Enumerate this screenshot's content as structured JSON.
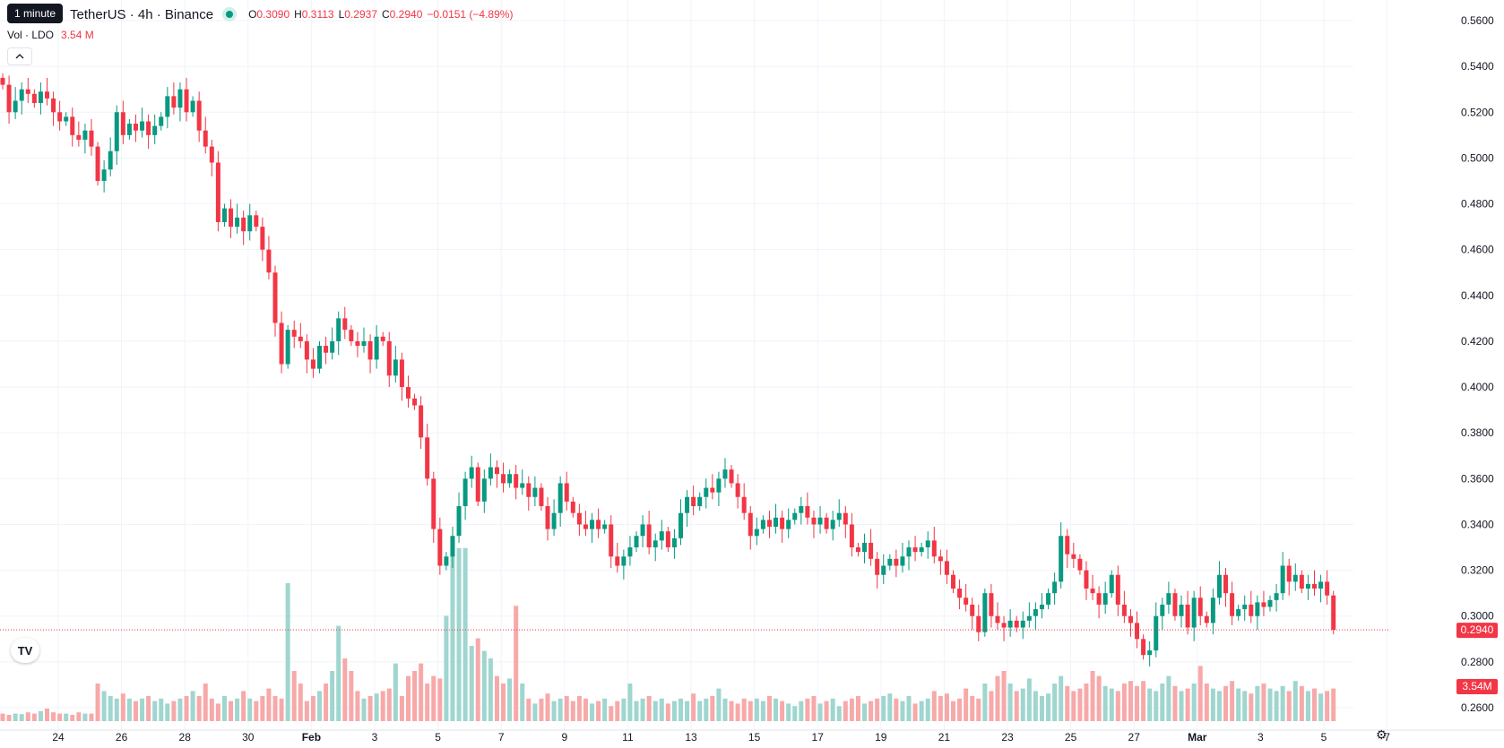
{
  "header": {
    "tooltip": "1 minute",
    "symbol": "TetherUS · 4h · Binance",
    "ohlc": {
      "o_label": "O",
      "o": "0.3090",
      "h_label": "H",
      "h": "0.3113",
      "l_label": "L",
      "l": "0.2937",
      "c_label": "C",
      "c": "0.2940",
      "change": "−0.0151 (−4.89%)"
    },
    "volume_label": "Vol · LDO",
    "volume_value": "3.54 M",
    "collapse_icon": "chevron-up-icon"
  },
  "colors": {
    "up": "#089981",
    "down": "#f23645",
    "up_volume": "#9fd6cf",
    "down_volume": "#f7a9a9"
  },
  "price_axis": {
    "labels": [
      "0.5600",
      "0.5400",
      "0.5200",
      "0.5000",
      "0.4800",
      "0.4600",
      "0.4400",
      "0.4200",
      "0.4000",
      "0.3800",
      "0.3600",
      "0.3400",
      "0.3200",
      "0.3000",
      "0.2800",
      "0.2600"
    ],
    "last_price": "0.2940",
    "last_volume": "3.54M"
  },
  "time_axis": {
    "labels": [
      "24",
      "26",
      "28",
      "30",
      "Feb",
      "3",
      "5",
      "7",
      "9",
      "11",
      "13",
      "15",
      "17",
      "19",
      "21",
      "23",
      "25",
      "27",
      "Mar",
      "3",
      "5",
      "7"
    ]
  },
  "logo": "TV",
  "settings_icon": "gear-icon",
  "chart_data": {
    "type": "candlestick",
    "interval": "4h",
    "grid": true,
    "y_range": [
      0.255,
      0.565
    ],
    "series": [
      {
        "name": "price",
        "values": [
          [
            0.535,
            0.532
          ],
          [
            0.532,
            0.52
          ],
          [
            0.52,
            0.525
          ],
          [
            0.525,
            0.53
          ],
          [
            0.53,
            0.528
          ],
          [
            0.528,
            0.524
          ],
          [
            0.524,
            0.529
          ],
          [
            0.529,
            0.526
          ],
          [
            0.526,
            0.52
          ],
          [
            0.52,
            0.516
          ],
          [
            0.516,
            0.518
          ],
          [
            0.518,
            0.51
          ],
          [
            0.51,
            0.508
          ],
          [
            0.508,
            0.512
          ],
          [
            0.512,
            0.505
          ],
          [
            0.505,
            0.49
          ],
          [
            0.49,
            0.495
          ],
          [
            0.495,
            0.503
          ],
          [
            0.503,
            0.52
          ],
          [
            0.52,
            0.51
          ],
          [
            0.51,
            0.515
          ],
          [
            0.515,
            0.512
          ],
          [
            0.512,
            0.516
          ],
          [
            0.516,
            0.51
          ],
          [
            0.51,
            0.514
          ],
          [
            0.514,
            0.518
          ],
          [
            0.518,
            0.527
          ],
          [
            0.527,
            0.522
          ],
          [
            0.522,
            0.53
          ],
          [
            0.53,
            0.52
          ],
          [
            0.52,
            0.525
          ],
          [
            0.525,
            0.512
          ],
          [
            0.512,
            0.505
          ],
          [
            0.505,
            0.498
          ],
          [
            0.498,
            0.472
          ],
          [
            0.472,
            0.478
          ],
          [
            0.478,
            0.47
          ],
          [
            0.47,
            0.474
          ],
          [
            0.474,
            0.468
          ],
          [
            0.468,
            0.475
          ],
          [
            0.475,
            0.47
          ],
          [
            0.47,
            0.46
          ],
          [
            0.46,
            0.45
          ],
          [
            0.45,
            0.428
          ],
          [
            0.428,
            0.41
          ],
          [
            0.41,
            0.425
          ],
          [
            0.425,
            0.422
          ],
          [
            0.422,
            0.42
          ],
          [
            0.42,
            0.412
          ],
          [
            0.412,
            0.408
          ],
          [
            0.408,
            0.418
          ],
          [
            0.418,
            0.415
          ],
          [
            0.415,
            0.42
          ],
          [
            0.42,
            0.43
          ],
          [
            0.43,
            0.425
          ],
          [
            0.425,
            0.42
          ],
          [
            0.42,
            0.418
          ],
          [
            0.418,
            0.42
          ],
          [
            0.42,
            0.412
          ],
          [
            0.412,
            0.422
          ],
          [
            0.422,
            0.42
          ],
          [
            0.42,
            0.405
          ],
          [
            0.405,
            0.412
          ],
          [
            0.412,
            0.4
          ],
          [
            0.4,
            0.395
          ],
          [
            0.395,
            0.392
          ],
          [
            0.392,
            0.378
          ],
          [
            0.378,
            0.36
          ],
          [
            0.36,
            0.338
          ],
          [
            0.338,
            0.322
          ],
          [
            0.322,
            0.326
          ],
          [
            0.326,
            0.335
          ],
          [
            0.335,
            0.348
          ],
          [
            0.348,
            0.36
          ],
          [
            0.36,
            0.365
          ],
          [
            0.365,
            0.35
          ],
          [
            0.35,
            0.36
          ],
          [
            0.36,
            0.365
          ],
          [
            0.365,
            0.362
          ],
          [
            0.362,
            0.358
          ],
          [
            0.358,
            0.362
          ],
          [
            0.362,
            0.356
          ],
          [
            0.356,
            0.358
          ],
          [
            0.358,
            0.352
          ],
          [
            0.352,
            0.356
          ],
          [
            0.356,
            0.348
          ],
          [
            0.348,
            0.338
          ],
          [
            0.338,
            0.345
          ],
          [
            0.345,
            0.358
          ],
          [
            0.358,
            0.35
          ],
          [
            0.35,
            0.345
          ],
          [
            0.345,
            0.34
          ],
          [
            0.34,
            0.338
          ],
          [
            0.338,
            0.342
          ],
          [
            0.342,
            0.338
          ],
          [
            0.338,
            0.34
          ],
          [
            0.34,
            0.326
          ],
          [
            0.326,
            0.322
          ],
          [
            0.322,
            0.326
          ],
          [
            0.326,
            0.33
          ],
          [
            0.33,
            0.335
          ],
          [
            0.335,
            0.34
          ],
          [
            0.34,
            0.33
          ],
          [
            0.33,
            0.333
          ],
          [
            0.333,
            0.337
          ],
          [
            0.337,
            0.33
          ],
          [
            0.33,
            0.334
          ],
          [
            0.334,
            0.345
          ],
          [
            0.345,
            0.352
          ],
          [
            0.352,
            0.348
          ],
          [
            0.348,
            0.352
          ],
          [
            0.352,
            0.356
          ],
          [
            0.356,
            0.354
          ],
          [
            0.354,
            0.36
          ],
          [
            0.36,
            0.364
          ],
          [
            0.364,
            0.358
          ],
          [
            0.358,
            0.352
          ],
          [
            0.352,
            0.345
          ],
          [
            0.345,
            0.335
          ],
          [
            0.335,
            0.338
          ],
          [
            0.338,
            0.342
          ],
          [
            0.342,
            0.339
          ],
          [
            0.339,
            0.343
          ],
          [
            0.343,
            0.338
          ],
          [
            0.338,
            0.342
          ],
          [
            0.342,
            0.345
          ],
          [
            0.345,
            0.348
          ],
          [
            0.348,
            0.343
          ],
          [
            0.343,
            0.34
          ],
          [
            0.34,
            0.343
          ],
          [
            0.343,
            0.338
          ],
          [
            0.338,
            0.342
          ],
          [
            0.342,
            0.345
          ],
          [
            0.345,
            0.34
          ],
          [
            0.34,
            0.33
          ],
          [
            0.33,
            0.328
          ],
          [
            0.328,
            0.332
          ],
          [
            0.332,
            0.325
          ],
          [
            0.325,
            0.318
          ],
          [
            0.318,
            0.322
          ],
          [
            0.322,
            0.325
          ],
          [
            0.325,
            0.322
          ],
          [
            0.322,
            0.326
          ],
          [
            0.326,
            0.33
          ],
          [
            0.33,
            0.328
          ],
          [
            0.328,
            0.33
          ],
          [
            0.33,
            0.333
          ],
          [
            0.333,
            0.326
          ],
          [
            0.326,
            0.324
          ],
          [
            0.324,
            0.318
          ],
          [
            0.318,
            0.312
          ],
          [
            0.312,
            0.308
          ],
          [
            0.308,
            0.305
          ],
          [
            0.305,
            0.3
          ],
          [
            0.3,
            0.293
          ],
          [
            0.293,
            0.31
          ],
          [
            0.31,
            0.3
          ],
          [
            0.3,
            0.297
          ],
          [
            0.297,
            0.295
          ],
          [
            0.295,
            0.298
          ],
          [
            0.298,
            0.295
          ],
          [
            0.295,
            0.298
          ],
          [
            0.298,
            0.3
          ],
          [
            0.3,
            0.303
          ],
          [
            0.303,
            0.305
          ],
          [
            0.305,
            0.31
          ],
          [
            0.31,
            0.315
          ],
          [
            0.315,
            0.335
          ],
          [
            0.335,
            0.327
          ],
          [
            0.327,
            0.325
          ],
          [
            0.325,
            0.32
          ],
          [
            0.32,
            0.312
          ],
          [
            0.312,
            0.31
          ],
          [
            0.31,
            0.305
          ],
          [
            0.305,
            0.31
          ],
          [
            0.31,
            0.318
          ],
          [
            0.318,
            0.305
          ],
          [
            0.305,
            0.3
          ],
          [
            0.3,
            0.297
          ],
          [
            0.297,
            0.29
          ],
          [
            0.29,
            0.283
          ],
          [
            0.283,
            0.285
          ],
          [
            0.285,
            0.3
          ],
          [
            0.3,
            0.305
          ],
          [
            0.305,
            0.31
          ],
          [
            0.31,
            0.3
          ],
          [
            0.3,
            0.305
          ],
          [
            0.305,
            0.295
          ],
          [
            0.295,
            0.308
          ],
          [
            0.308,
            0.3
          ],
          [
            0.3,
            0.297
          ],
          [
            0.297,
            0.308
          ],
          [
            0.308,
            0.318
          ],
          [
            0.318,
            0.31
          ],
          [
            0.31,
            0.3
          ],
          [
            0.3,
            0.303
          ],
          [
            0.303,
            0.305
          ],
          [
            0.305,
            0.3
          ],
          [
            0.3,
            0.306
          ],
          [
            0.306,
            0.304
          ],
          [
            0.304,
            0.307
          ],
          [
            0.307,
            0.31
          ],
          [
            0.31,
            0.322
          ],
          [
            0.322,
            0.315
          ],
          [
            0.315,
            0.318
          ],
          [
            0.318,
            0.312
          ],
          [
            0.312,
            0.314
          ],
          [
            0.314,
            0.312
          ],
          [
            0.312,
            0.315
          ],
          [
            0.315,
            0.309
          ],
          [
            0.309,
            0.294
          ]
        ]
      },
      {
        "name": "volume",
        "values": [
          0.3,
          0.25,
          0.3,
          0.28,
          0.35,
          0.3,
          0.4,
          0.5,
          0.35,
          0.3,
          0.3,
          0.25,
          0.35,
          0.3,
          0.3,
          1.5,
          1.2,
          1.0,
          0.9,
          1.1,
          0.9,
          0.8,
          0.9,
          1.0,
          0.8,
          0.9,
          0.7,
          0.8,
          0.9,
          1.0,
          1.2,
          1.0,
          1.5,
          0.9,
          0.7,
          1.0,
          0.8,
          0.9,
          1.2,
          0.9,
          0.8,
          1.0,
          1.3,
          1.0,
          0.9,
          5.5,
          2.0,
          1.5,
          0.8,
          1.0,
          1.2,
          1.5,
          2.0,
          3.8,
          2.5,
          2.0,
          1.2,
          0.9,
          1.0,
          1.1,
          1.2,
          1.3,
          2.3,
          1.0,
          1.8,
          2.0,
          2.3,
          1.5,
          1.8,
          1.7,
          4.2,
          6.9,
          6.9,
          6.9,
          3.0,
          3.3,
          2.8,
          2.5,
          1.8,
          1.5,
          1.7,
          4.6,
          1.5,
          0.9,
          0.7,
          0.9,
          1.1,
          0.8,
          0.9,
          1.0,
          0.8,
          1.0,
          0.9,
          0.7,
          0.8,
          0.9,
          0.6,
          0.8,
          0.9,
          1.5,
          0.8,
          0.9,
          1.0,
          0.8,
          0.9,
          0.7,
          0.8,
          0.9,
          0.8,
          1.1,
          0.8,
          0.9,
          1.0,
          1.3,
          0.9,
          0.8,
          0.7,
          0.9,
          0.8,
          0.9,
          0.8,
          1.0,
          0.9,
          0.8,
          0.7,
          0.6,
          0.8,
          0.9,
          1.0,
          0.7,
          0.8,
          0.9,
          0.6,
          0.8,
          0.9,
          1.0,
          0.7,
          0.8,
          0.9,
          1.0,
          1.1,
          0.9,
          0.8,
          1.0,
          0.7,
          0.8,
          0.9,
          1.2,
          1.0,
          1.1,
          0.8,
          0.9,
          1.3,
          1.0,
          0.9,
          1.5,
          1.2,
          1.8,
          2.0,
          1.5,
          1.2,
          1.3,
          1.7,
          1.2,
          1.0,
          1.1,
          1.5,
          1.8,
          1.4,
          1.2,
          1.3,
          1.5,
          2.0,
          1.8,
          1.4,
          1.3,
          1.2,
          1.5,
          1.6,
          1.4,
          1.6,
          1.3,
          1.2,
          1.5,
          1.8,
          1.4,
          1.2,
          1.3,
          1.5,
          2.2,
          1.5,
          1.3,
          1.2,
          1.4,
          1.6,
          1.3,
          1.2,
          1.1,
          1.4,
          1.5,
          1.3,
          1.2,
          1.4,
          1.2,
          1.6,
          1.4,
          1.2,
          1.3,
          1.1,
          1.2,
          1.3,
          1.2,
          1.0,
          1.1,
          1.2,
          1.1,
          1.2,
          1.0,
          1.3,
          1.1,
          1.4
        ]
      }
    ]
  }
}
